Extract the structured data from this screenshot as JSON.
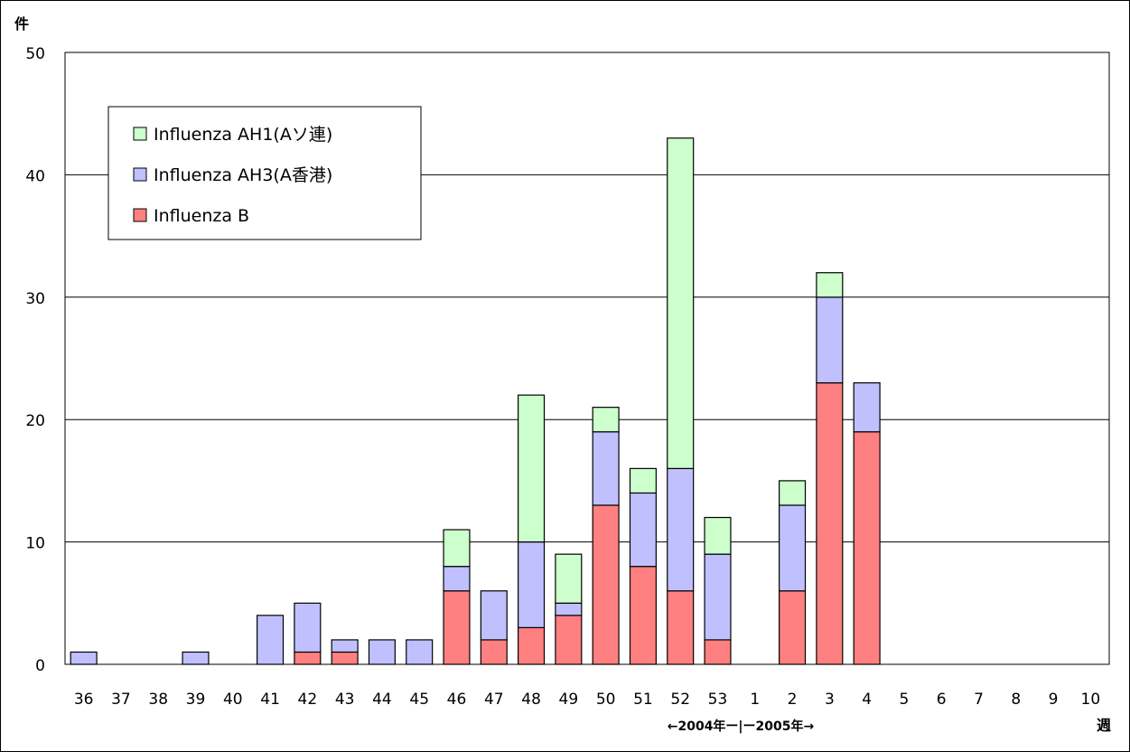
{
  "chart_data": {
    "type": "bar",
    "stacked": true,
    "title": "",
    "ylabel": "件",
    "xlabel": "週",
    "year_note": "←2004年ー|ー2005年→",
    "ylim": [
      0,
      50
    ],
    "yticks": [
      0,
      10,
      20,
      30,
      40,
      50
    ],
    "grid": true,
    "legend_position": "top-left",
    "categories": [
      "36",
      "37",
      "38",
      "39",
      "40",
      "41",
      "42",
      "43",
      "44",
      "45",
      "46",
      "47",
      "48",
      "49",
      "50",
      "51",
      "52",
      "53",
      "1",
      "2",
      "3",
      "4",
      "5",
      "6",
      "7",
      "8",
      "9",
      "10"
    ],
    "series": [
      {
        "name": "Influenza B",
        "color": "#ff8080",
        "values": [
          0,
          0,
          0,
          0,
          0,
          0,
          1,
          1,
          0,
          0,
          6,
          2,
          3,
          4,
          13,
          8,
          6,
          2,
          0,
          6,
          23,
          19,
          0,
          0,
          0,
          0,
          0,
          0
        ]
      },
      {
        "name": "Influenza AH3(A香港)",
        "color": "#c0c0ff",
        "values": [
          1,
          0,
          0,
          1,
          0,
          4,
          4,
          1,
          2,
          2,
          2,
          4,
          7,
          1,
          6,
          6,
          10,
          7,
          0,
          7,
          7,
          4,
          0,
          0,
          0,
          0,
          0,
          0
        ]
      },
      {
        "name": "Influenza AH1(Aソ連)",
        "color": "#ccffcc",
        "values": [
          0,
          0,
          0,
          0,
          0,
          0,
          0,
          0,
          0,
          0,
          3,
          0,
          12,
          4,
          2,
          2,
          27,
          3,
          0,
          2,
          2,
          0,
          0,
          0,
          0,
          0,
          0,
          0
        ]
      }
    ],
    "legend_order": [
      2,
      1,
      0
    ]
  }
}
